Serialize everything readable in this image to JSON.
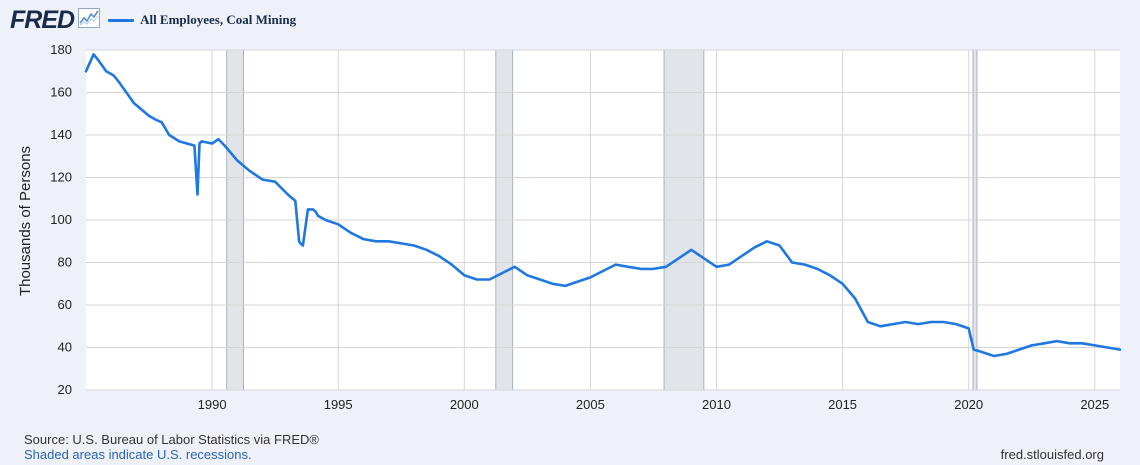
{
  "header": {
    "logo": "FRED",
    "logo_icon": "trend-chart-icon"
  },
  "footer": {
    "source": "Source: U.S. Bureau of Labor Statistics via FRED®",
    "recessions_note": "Shaded areas indicate U.S. recessions.",
    "site": "fred.stlouisfed.org"
  },
  "colors": {
    "line": "#1f77e0",
    "recession": "#e1e5ea",
    "grid": "#d6d6d6",
    "background": "#eef2f8",
    "plot_background": "#ffffff"
  },
  "chart_data": {
    "type": "line",
    "title": "",
    "xlabel": "",
    "ylabel": "Thousands of Persons",
    "xlim": [
      1985.0,
      2026.0
    ],
    "ylim": [
      20,
      180
    ],
    "yticks": [
      20,
      40,
      60,
      80,
      100,
      120,
      140,
      160,
      180
    ],
    "xticks": [
      1990,
      1995,
      2000,
      2005,
      2010,
      2015,
      2020,
      2025
    ],
    "grid": true,
    "legend": "top-left",
    "recessions": [
      [
        1990.58,
        1991.25
      ],
      [
        2001.25,
        2001.92
      ],
      [
        2007.92,
        2009.5
      ],
      [
        2020.17,
        2020.33
      ]
    ],
    "series": [
      {
        "name": "All Employees, Coal Mining",
        "x": [
          1985.0,
          1985.3,
          1985.5,
          1985.8,
          1986.1,
          1986.3,
          1986.6,
          1986.9,
          1987.2,
          1987.5,
          1987.8,
          1988.0,
          1988.3,
          1988.7,
          1989.0,
          1989.3,
          1989.42,
          1989.5,
          1989.58,
          1990.0,
          1990.25,
          1990.5,
          1991.0,
          1991.5,
          1992.0,
          1992.5,
          1993.0,
          1993.3,
          1993.45,
          1993.5,
          1993.6,
          1993.8,
          1994.0,
          1994.1,
          1994.2,
          1994.5,
          1995.0,
          1995.5,
          1996.0,
          1996.5,
          1997.0,
          1997.5,
          1998.0,
          1998.5,
          1999.0,
          1999.5,
          2000.0,
          2000.5,
          2001.0,
          2001.5,
          2002.0,
          2002.5,
          2003.0,
          2003.5,
          2004.0,
          2004.5,
          2005.0,
          2005.5,
          2006.0,
          2006.5,
          2007.0,
          2007.5,
          2008.0,
          2008.5,
          2009.0,
          2009.5,
          2010.0,
          2010.5,
          2011.0,
          2011.5,
          2012.0,
          2012.5,
          2013.0,
          2013.5,
          2014.0,
          2014.5,
          2015.0,
          2015.5,
          2016.0,
          2016.5,
          2017.0,
          2017.5,
          2018.0,
          2018.5,
          2019.0,
          2019.5,
          2020.0,
          2020.2,
          2020.5,
          2021.0,
          2021.5,
          2022.0,
          2022.5,
          2023.0,
          2023.5,
          2024.0,
          2024.5,
          2025.0,
          2025.5,
          2026.0
        ],
        "values": [
          170,
          178,
          175,
          170,
          168,
          165,
          160,
          155,
          152,
          149,
          147,
          146,
          140,
          137,
          136,
          135,
          112,
          136,
          137,
          136,
          138,
          135,
          128,
          123,
          119,
          118,
          112,
          109,
          90,
          89,
          88,
          105,
          105,
          104,
          102,
          100,
          98,
          94,
          91,
          90,
          90,
          89,
          88,
          86,
          83,
          79,
          74,
          72,
          72,
          75,
          78,
          74,
          72,
          70,
          69,
          71,
          73,
          76,
          79,
          78,
          77,
          77,
          78,
          82,
          86,
          82,
          78,
          79,
          83,
          87,
          90,
          88,
          80,
          79,
          77,
          74,
          70,
          63,
          52,
          50,
          51,
          52,
          51,
          52,
          52,
          51,
          49,
          39,
          38,
          36,
          37,
          39,
          41,
          42,
          43,
          42,
          42,
          41,
          40,
          39
        ]
      }
    ]
  }
}
